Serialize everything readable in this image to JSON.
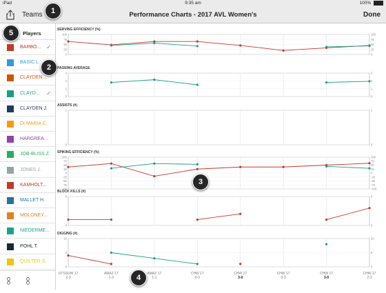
{
  "status_bar": {
    "device": "iPad",
    "time": "9:35 am",
    "battery": "100%"
  },
  "nav": {
    "teams_label": "Teams",
    "title": "Performance Charts - 2017 AVL Women's",
    "done_label": "Done"
  },
  "sidebar": {
    "header": "Players",
    "players": [
      {
        "name": "BARBO...",
        "color": "#c0392b",
        "checked": true
      },
      {
        "name": "BASIC L.",
        "color": "#3498db",
        "checked": false
      },
      {
        "name": "CLAYDEN...",
        "color": "#d35400",
        "checked": false
      },
      {
        "name": "CLAYD...",
        "color": "#16a085",
        "checked": true
      },
      {
        "name": "CLAYDEN J.",
        "color": "#1f3a5f",
        "checked": false
      },
      {
        "name": "DI MARIA C.",
        "color": "#f39c12",
        "checked": false
      },
      {
        "name": "HARGREA...",
        "color": "#8e44ad",
        "checked": false
      },
      {
        "name": "JOB-BLISS Z.",
        "color": "#27ae60",
        "checked": false
      },
      {
        "name": "JONES J.",
        "color": "#95a5a6",
        "checked": false
      },
      {
        "name": "KAMHOLT...",
        "color": "#c0392b",
        "checked": false
      },
      {
        "name": "MALLET H.",
        "color": "#2471a3",
        "checked": false
      },
      {
        "name": "MOLONEY...",
        "color": "#e67e22",
        "checked": false
      },
      {
        "name": "NIEDERME...",
        "color": "#17a589",
        "checked": false
      },
      {
        "name": "POHL T.",
        "color": "#1c2833",
        "checked": false
      },
      {
        "name": "QUILTER S.",
        "color": "#f1c40f",
        "checked": false
      }
    ]
  },
  "callouts": [
    "1",
    "2",
    "3",
    "4",
    "5"
  ],
  "chart_data": {
    "type": "line",
    "categories": [
      {
        "team": "UTSSUW 17",
        "score": "2-3",
        "bold": false
      },
      {
        "team": "AMAZ 17",
        "score": "1-3",
        "bold": false
      },
      {
        "team": "AMAZ 17",
        "score": "1-1",
        "bold": false
      },
      {
        "team": "CHW 17",
        "score": "0-3",
        "bold": false
      },
      {
        "team": "CHW 17",
        "score": "3-0",
        "bold": true
      },
      {
        "team": "CHW 17",
        "score": "0-3",
        "bold": false
      },
      {
        "team": "CHW 17",
        "score": "3-0",
        "bold": true
      },
      {
        "team": "CHW 17",
        "score": "2-3",
        "bold": false
      }
    ],
    "panels": [
      {
        "title": "SERVING EFFICIENCY (%)",
        "ylim": [
          0,
          100
        ],
        "ticks": [
          0,
          25,
          50,
          75,
          100
        ],
        "series": [
          {
            "color": "#c0392b",
            "values": [
              65,
              48,
              65,
              65,
              45,
              20,
              33,
              45
            ]
          },
          {
            "color": "#16a085",
            "values": [
              null,
              45,
              57,
              42,
              null,
              null,
              38,
              43
            ]
          }
        ]
      },
      {
        "title": "PASSING AVERAGE",
        "ylim": [
          0,
          3
        ],
        "ticks": [
          0,
          1,
          2,
          3
        ],
        "series": [
          {
            "color": "#16a085",
            "values": [
              null,
              1.8,
              2.15,
              1.5,
              null,
              null,
              1.8,
              1.95
            ]
          }
        ]
      },
      {
        "title": "ASSISTS (#)",
        "ylim": [
          0,
          1
        ],
        "ticks": [
          0,
          1
        ],
        "series": []
      },
      {
        "title": "SPIKING EFFICIENCY (%)",
        "ylim": [
          -100,
          100
        ],
        "ticks": [
          -100,
          -75,
          -50,
          -25,
          0,
          25,
          50,
          75,
          100
        ],
        "series": [
          {
            "color": "#c0392b",
            "values": [
              38,
              60,
              -20,
              25,
              38,
              38,
              50,
              62
            ]
          },
          {
            "color": "#16a085",
            "values": [
              null,
              30,
              60,
              55,
              null,
              null,
              42,
              30
            ]
          }
        ]
      },
      {
        "title": "BLOCK KILLS (#)",
        "ylim": [
          0,
          5
        ],
        "ticks": [
          0,
          5
        ],
        "series": [
          {
            "color": "#c0392b",
            "values": [
              1,
              1,
              null,
              1,
              2,
              null,
              1,
              3
            ]
          }
        ]
      },
      {
        "title": "DIGGING (#)",
        "ylim": [
          0,
          10
        ],
        "ticks": [
          0,
          5,
          10
        ],
        "series": [
          {
            "color": "#c0392b",
            "values": [
              4,
              1,
              null,
              null,
              1,
              null,
              null,
              null
            ]
          },
          {
            "color": "#16a085",
            "values": [
              null,
              5,
              3,
              1,
              null,
              null,
              8,
              null
            ]
          }
        ]
      }
    ]
  }
}
